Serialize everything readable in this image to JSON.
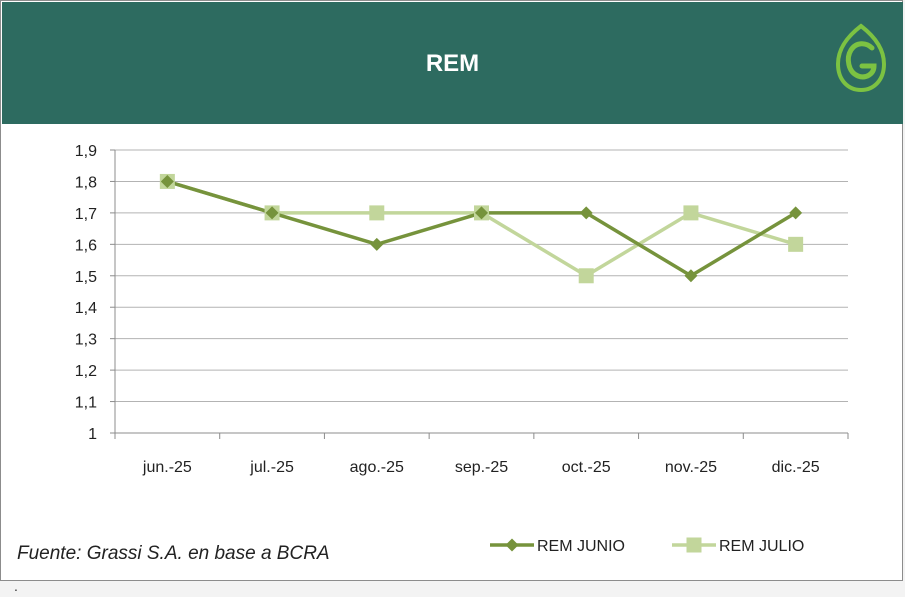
{
  "header": {
    "title": "REM"
  },
  "footer": {
    "source": "Fuente: Grassi S.A.  en base a BCRA",
    "dot": "."
  },
  "colors": {
    "header_bg": "#2d6b60",
    "series1": "#76933c",
    "series2": "#c2d69b",
    "grid": "#b3b3b3",
    "logo": "#7cc242"
  },
  "icons": {
    "logo": "leaf-g-logo-icon"
  },
  "chart_data": {
    "type": "line",
    "title": "REM",
    "xlabel": "",
    "ylabel": "",
    "categories": [
      "jun.-25",
      "jul.-25",
      "ago.-25",
      "sep.-25",
      "oct.-25",
      "nov.-25",
      "dic.-25"
    ],
    "ylim": [
      1,
      1.9
    ],
    "yticks": [
      "1",
      "1,1",
      "1,2",
      "1,3",
      "1,4",
      "1,5",
      "1,6",
      "1,7",
      "1,8",
      "1,9"
    ],
    "grid": true,
    "legend": "bottom-right",
    "series": [
      {
        "name": "REM JUNIO",
        "values": [
          1.8,
          1.7,
          1.6,
          1.7,
          1.7,
          1.5,
          1.7
        ],
        "marker": "diamond",
        "color": "#76933c"
      },
      {
        "name": "REM JULIO",
        "values": [
          1.8,
          1.7,
          1.7,
          1.7,
          1.5,
          1.7,
          1.6
        ],
        "marker": "square",
        "color": "#c2d69b"
      }
    ]
  }
}
